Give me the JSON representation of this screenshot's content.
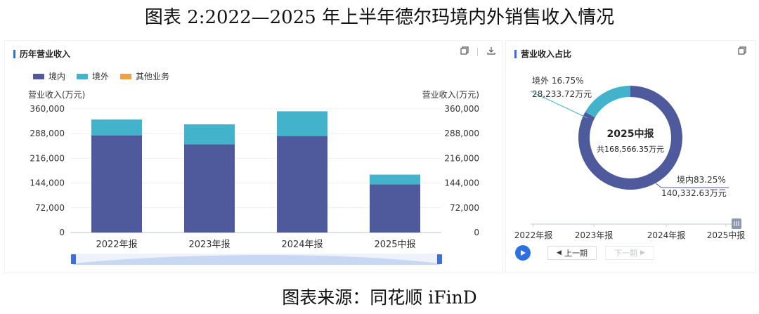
{
  "figure": {
    "title": "图表 2:2022—2025 年上半年德尔玛境内外销售收入情况",
    "source": "图表来源：同花顺 iFinD"
  },
  "left_panel": {
    "title": "历年营业收入",
    "legend": [
      {
        "label": "境内",
        "color": "#4e5a9c"
      },
      {
        "label": "境外",
        "color": "#43b3cc"
      },
      {
        "label": "其他业务",
        "color": "#f0a047"
      }
    ],
    "left_axis_label": "营业收入(万元)",
    "right_axis_label": "营业收入(万元)",
    "tools": {
      "copy_icon": "copy-icon",
      "download_icon": "download-icon"
    }
  },
  "right_panel": {
    "title": "营业收入占比",
    "tools": {
      "copy_icon": "copy-icon"
    },
    "center_title": "2025中报",
    "center_total": "共168,566.35万元",
    "outside_label_pct": "境外 16.75%",
    "outside_label_val": "28,233.72万元",
    "inside_label_pct": "境内83.25%",
    "inside_label_val": "140,332.63万元",
    "timeline": {
      "labels": [
        "2022年报",
        "2023年报",
        "2024年报",
        "2025中报"
      ],
      "selected_index": 3
    },
    "prev_label": "上一期",
    "next_label": "下一期"
  },
  "chart_data": [
    {
      "type": "bar",
      "stacked": true,
      "title": "历年营业收入",
      "categories": [
        "2022年报",
        "2023年报",
        "2024年报",
        "2025中报"
      ],
      "series": [
        {
          "name": "境内",
          "color": "#4e5a9c",
          "values": [
            283000,
            257000,
            281000,
            140332.63
          ]
        },
        {
          "name": "境外",
          "color": "#43b3cc",
          "values": [
            46000,
            58000,
            72000,
            28233.72
          ]
        },
        {
          "name": "其他业务",
          "color": "#f0a047",
          "values": [
            0,
            0,
            0,
            0
          ]
        }
      ],
      "ylabel": "营业收入(万元)",
      "ylim": [
        0,
        360000
      ],
      "yticks": [
        0,
        72000,
        144000,
        216000,
        288000,
        360000
      ],
      "ytick_labels": [
        "0",
        "72,000",
        "144,000",
        "216,000",
        "288,000",
        "360,000"
      ],
      "legend_position": "top-left",
      "grid": true
    },
    {
      "type": "pie",
      "donut": true,
      "title": "营业收入占比",
      "period": "2025中报",
      "slices": [
        {
          "name": "境内",
          "value": 140332.63,
          "percent": 83.25,
          "color": "#4e5a9c"
        },
        {
          "name": "境外",
          "value": 28233.72,
          "percent": 16.75,
          "color": "#43b3cc"
        }
      ]
    }
  ]
}
